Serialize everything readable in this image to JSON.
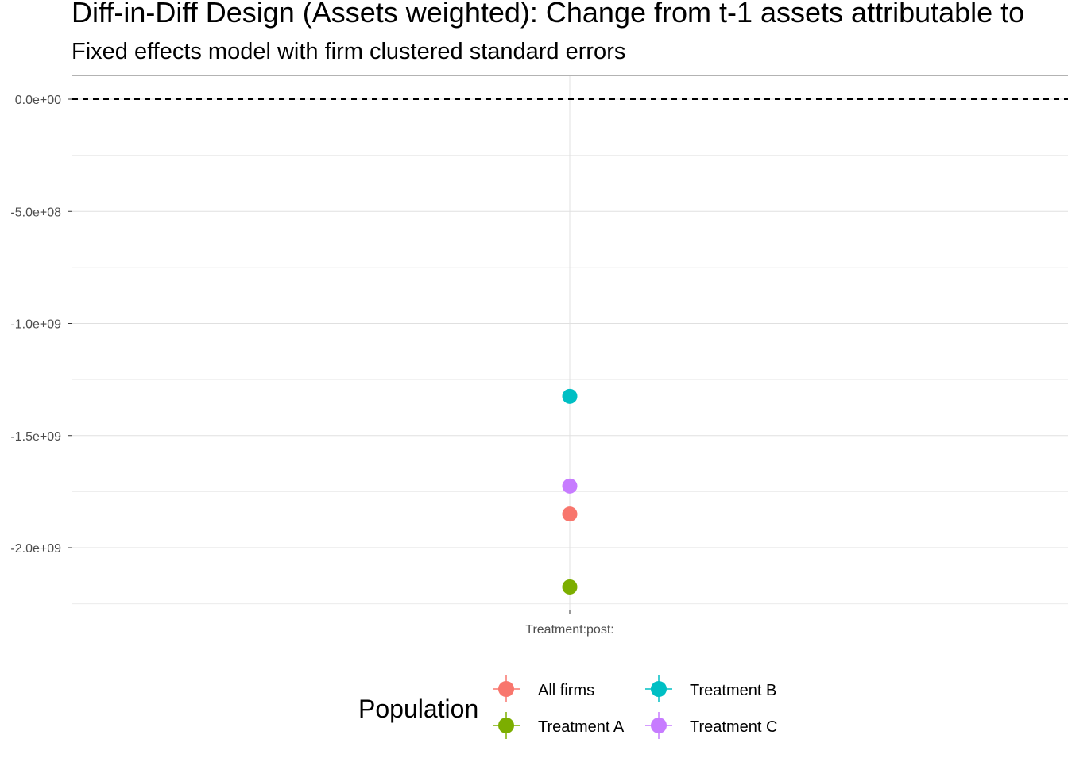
{
  "chart_data": {
    "type": "scatter",
    "title": "Diff-in-Diff Design (Assets weighted): Change from t-1 assets attributable to",
    "subtitle": "Fixed effects model with firm clustered standard errors",
    "xlabel": "",
    "ylabel": "",
    "categories": [
      "Treatment:post:"
    ],
    "ylim": [
      -2250000000,
      100000000
    ],
    "y_ticks": [
      0,
      -500000000,
      -1000000000,
      -1500000000,
      -2000000000
    ],
    "y_tick_labels": [
      "0.0e+00",
      "-5.0e+08",
      "-1.0e+09",
      "-1.5e+09",
      "-2.0e+09"
    ],
    "reference_line": {
      "y": 0,
      "style": "dashed"
    },
    "grid": true,
    "legend": {
      "title": "Population",
      "position": "bottom"
    },
    "series": [
      {
        "name": "All firms",
        "color": "#F8766D",
        "values": [
          -1850000000
        ]
      },
      {
        "name": "Treatment A",
        "color": "#7CAE00",
        "values": [
          -2175000000
        ]
      },
      {
        "name": "Treatment B",
        "color": "#00BFC4",
        "values": [
          -1325000000
        ]
      },
      {
        "name": "Treatment C",
        "color": "#C77CFF",
        "values": [
          -1725000000
        ]
      }
    ]
  }
}
